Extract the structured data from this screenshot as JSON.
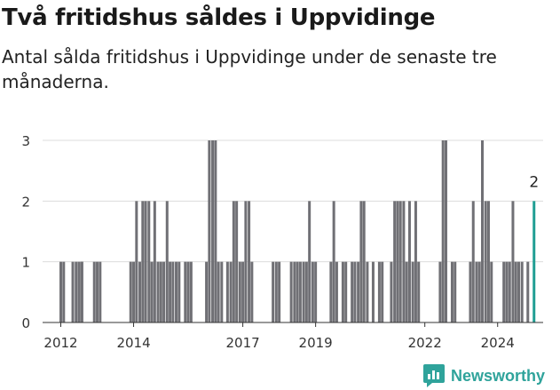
{
  "title": "Två fritidshus såldes i Uppvidinge",
  "subtitle": "Antal sålda fritidshus i Uppvidinge under de senaste tre månaderna.",
  "brand": {
    "name": "Newsworthy",
    "icon": "newsworthy-logo-icon",
    "color": "#2fa39b"
  },
  "chart_data": {
    "type": "bar",
    "title": "",
    "xlabel": "",
    "ylabel": "",
    "ylim": [
      0,
      3
    ],
    "yticks": [
      "0",
      "1",
      "2",
      "3"
    ],
    "xlim": [
      2011.5,
      2025.25
    ],
    "xticks": [
      {
        "label": "2012",
        "value": 2012.0
      },
      {
        "label": "2014",
        "value": 2014.0
      },
      {
        "label": "2017",
        "value": 2017.0
      },
      {
        "label": "2019",
        "value": 2019.0
      },
      {
        "label": "2022",
        "value": 2022.0
      },
      {
        "label": "2024",
        "value": 2024.0
      }
    ],
    "grid": true,
    "bar_color": "#707075",
    "highlight_color": "#1f9e93",
    "highlight_label": "2",
    "points": [
      {
        "x": 2012.0,
        "y": 1
      },
      {
        "x": 2012.08,
        "y": 1
      },
      {
        "x": 2012.33,
        "y": 1
      },
      {
        "x": 2012.42,
        "y": 1
      },
      {
        "x": 2012.5,
        "y": 1
      },
      {
        "x": 2012.58,
        "y": 1
      },
      {
        "x": 2012.58,
        "y": 1
      },
      {
        "x": 2012.92,
        "y": 1
      },
      {
        "x": 2013.0,
        "y": 1
      },
      {
        "x": 2013.08,
        "y": 1
      },
      {
        "x": 2013.92,
        "y": 1
      },
      {
        "x": 2014.0,
        "y": 1
      },
      {
        "x": 2014.08,
        "y": 2
      },
      {
        "x": 2014.17,
        "y": 1
      },
      {
        "x": 2014.25,
        "y": 2
      },
      {
        "x": 2014.33,
        "y": 2
      },
      {
        "x": 2014.42,
        "y": 2
      },
      {
        "x": 2014.5,
        "y": 1
      },
      {
        "x": 2014.58,
        "y": 2
      },
      {
        "x": 2014.67,
        "y": 1
      },
      {
        "x": 2014.75,
        "y": 1
      },
      {
        "x": 2014.83,
        "y": 1
      },
      {
        "x": 2014.92,
        "y": 2
      },
      {
        "x": 2015.0,
        "y": 1
      },
      {
        "x": 2015.08,
        "y": 1
      },
      {
        "x": 2015.17,
        "y": 1
      },
      {
        "x": 2015.25,
        "y": 1
      },
      {
        "x": 2015.42,
        "y": 1
      },
      {
        "x": 2015.5,
        "y": 1
      },
      {
        "x": 2015.58,
        "y": 1
      },
      {
        "x": 2016.0,
        "y": 1
      },
      {
        "x": 2016.08,
        "y": 3
      },
      {
        "x": 2016.17,
        "y": 3
      },
      {
        "x": 2016.25,
        "y": 3
      },
      {
        "x": 2016.33,
        "y": 1
      },
      {
        "x": 2016.42,
        "y": 1
      },
      {
        "x": 2016.58,
        "y": 1
      },
      {
        "x": 2016.67,
        "y": 1
      },
      {
        "x": 2016.75,
        "y": 2
      },
      {
        "x": 2016.83,
        "y": 2
      },
      {
        "x": 2016.92,
        "y": 1
      },
      {
        "x": 2017.0,
        "y": 1
      },
      {
        "x": 2017.08,
        "y": 2
      },
      {
        "x": 2017.17,
        "y": 2
      },
      {
        "x": 2017.25,
        "y": 1
      },
      {
        "x": 2017.83,
        "y": 1
      },
      {
        "x": 2017.92,
        "y": 1
      },
      {
        "x": 2018.0,
        "y": 1
      },
      {
        "x": 2018.33,
        "y": 1
      },
      {
        "x": 2018.42,
        "y": 1
      },
      {
        "x": 2018.5,
        "y": 1
      },
      {
        "x": 2018.58,
        "y": 1
      },
      {
        "x": 2018.67,
        "y": 1
      },
      {
        "x": 2018.75,
        "y": 1
      },
      {
        "x": 2018.83,
        "y": 2
      },
      {
        "x": 2018.92,
        "y": 1
      },
      {
        "x": 2019.0,
        "y": 1
      },
      {
        "x": 2019.42,
        "y": 1
      },
      {
        "x": 2019.5,
        "y": 2
      },
      {
        "x": 2019.58,
        "y": 1
      },
      {
        "x": 2019.75,
        "y": 1
      },
      {
        "x": 2019.83,
        "y": 1
      },
      {
        "x": 2020.0,
        "y": 1
      },
      {
        "x": 2020.08,
        "y": 1
      },
      {
        "x": 2020.17,
        "y": 1
      },
      {
        "x": 2020.25,
        "y": 2
      },
      {
        "x": 2020.33,
        "y": 2
      },
      {
        "x": 2020.42,
        "y": 1
      },
      {
        "x": 2020.58,
        "y": 1
      },
      {
        "x": 2020.75,
        "y": 1
      },
      {
        "x": 2020.83,
        "y": 1
      },
      {
        "x": 2021.08,
        "y": 1
      },
      {
        "x": 2021.17,
        "y": 2
      },
      {
        "x": 2021.25,
        "y": 2
      },
      {
        "x": 2021.33,
        "y": 2
      },
      {
        "x": 2021.42,
        "y": 2
      },
      {
        "x": 2021.5,
        "y": 1
      },
      {
        "x": 2021.58,
        "y": 2
      },
      {
        "x": 2021.67,
        "y": 1
      },
      {
        "x": 2021.75,
        "y": 2
      },
      {
        "x": 2021.83,
        "y": 1
      },
      {
        "x": 2022.42,
        "y": 1
      },
      {
        "x": 2022.5,
        "y": 3
      },
      {
        "x": 2022.58,
        "y": 3
      },
      {
        "x": 2022.75,
        "y": 1
      },
      {
        "x": 2022.83,
        "y": 1
      },
      {
        "x": 2023.25,
        "y": 1
      },
      {
        "x": 2023.33,
        "y": 2
      },
      {
        "x": 2023.42,
        "y": 1
      },
      {
        "x": 2023.5,
        "y": 1
      },
      {
        "x": 2023.58,
        "y": 3
      },
      {
        "x": 2023.67,
        "y": 2
      },
      {
        "x": 2023.75,
        "y": 2
      },
      {
        "x": 2023.83,
        "y": 1
      },
      {
        "x": 2024.17,
        "y": 1
      },
      {
        "x": 2024.25,
        "y": 1
      },
      {
        "x": 2024.33,
        "y": 1
      },
      {
        "x": 2024.42,
        "y": 2
      },
      {
        "x": 2024.5,
        "y": 1
      },
      {
        "x": 2024.58,
        "y": 1
      },
      {
        "x": 2024.67,
        "y": 1
      },
      {
        "x": 2024.83,
        "y": 1
      },
      {
        "x": 2025.0,
        "y": 2,
        "highlight": true
      }
    ]
  }
}
